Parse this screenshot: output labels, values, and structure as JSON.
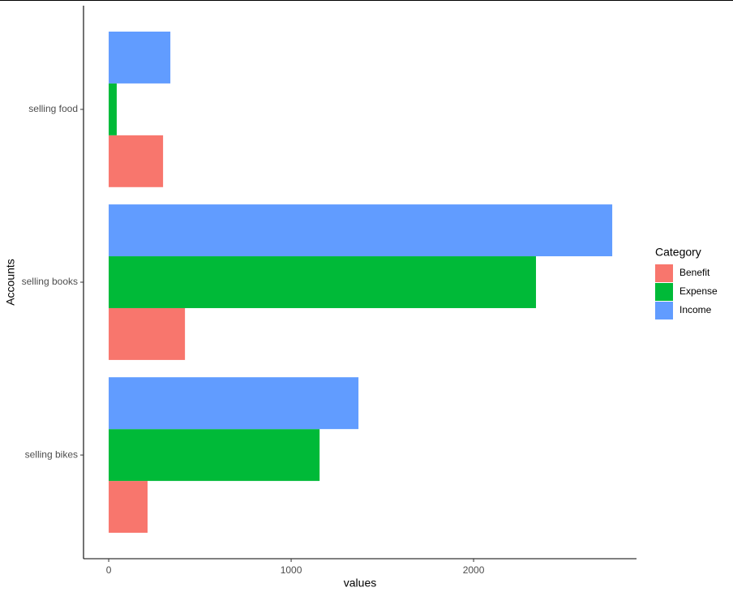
{
  "chart_data": {
    "type": "hbar",
    "categories": [
      "selling bikes",
      "selling books",
      "selling food"
    ],
    "series": [
      {
        "name": "Benefit",
        "color": "#f8766d",
        "values": [
          213,
          418,
          298
        ]
      },
      {
        "name": "Expense",
        "color": "#00ba38",
        "values": [
          1156,
          2342,
          44
        ]
      },
      {
        "name": "Income",
        "color": "#619cff",
        "values": [
          1369,
          2760,
          338
        ]
      }
    ],
    "x_label": "values",
    "y_label": "Accounts",
    "legend_title": "Category",
    "xlim": [
      -138,
      2893
    ],
    "xticks": [
      0,
      1000,
      2000
    ],
    "legend": "right"
  }
}
